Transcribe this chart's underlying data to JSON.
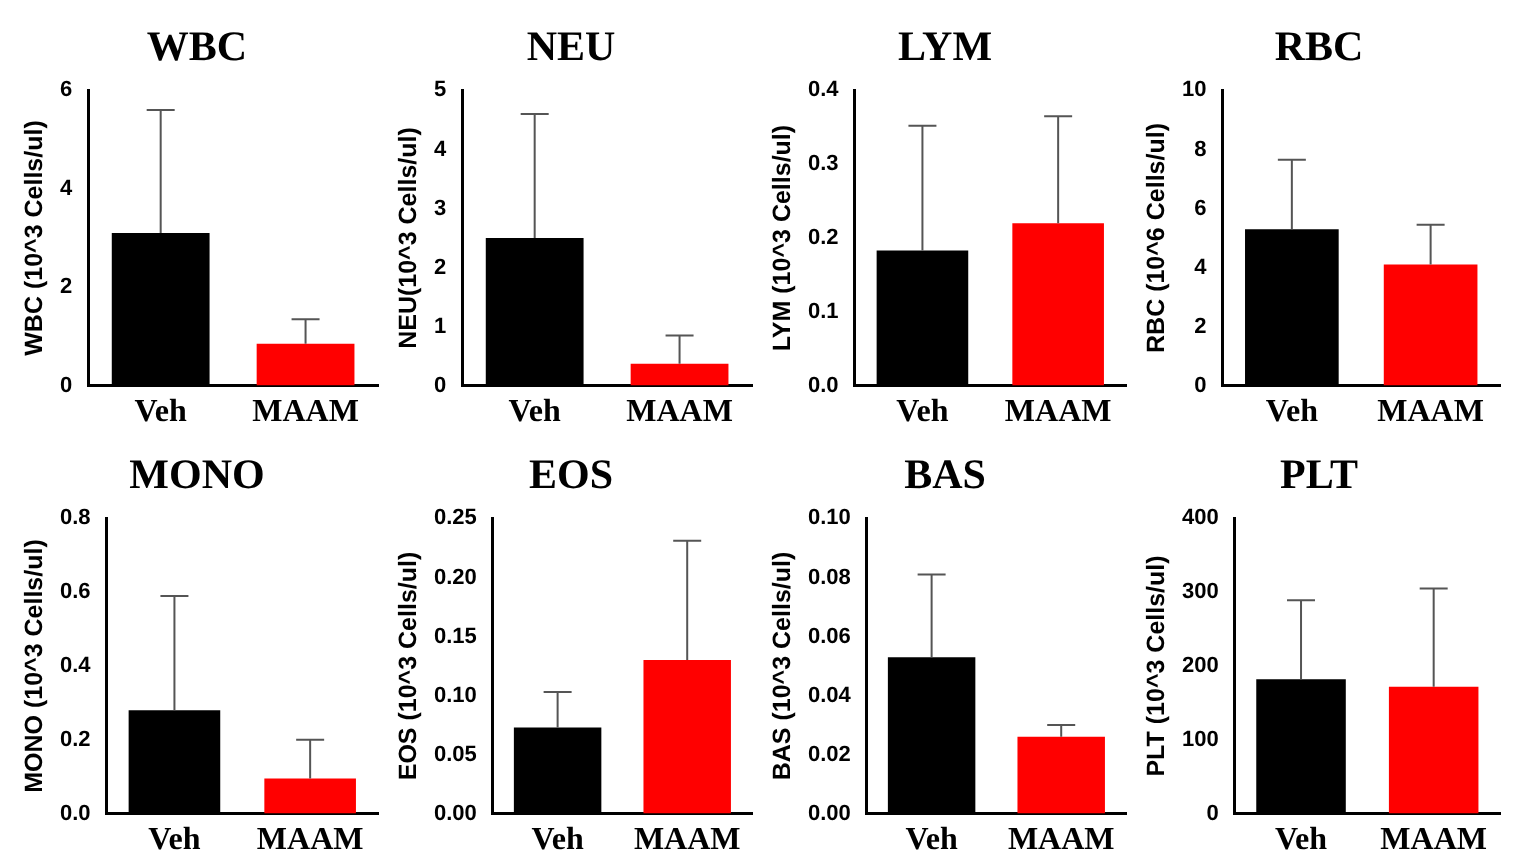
{
  "chart_data": [
    {
      "type": "bar",
      "title": "WBC",
      "ylabel": "WBC (10^3 Cells/ul)",
      "categories": [
        "Veh",
        "MAAM"
      ],
      "values": [
        3.1,
        0.85
      ],
      "errors": [
        [
          3.1,
          5.6
        ],
        [
          0.85,
          1.35
        ]
      ],
      "colors": [
        "#000000",
        "#ff0000"
      ],
      "ylim": [
        0,
        6
      ],
      "yticks": [
        0,
        2,
        4,
        6
      ],
      "grid": false
    },
    {
      "type": "bar",
      "title": "NEU",
      "ylabel": "NEU(10^3 Cells/ul)",
      "categories": [
        "Veh",
        "MAAM"
      ],
      "values": [
        2.5,
        0.37
      ],
      "errors": [
        [
          2.5,
          4.6
        ],
        [
          0.37,
          0.85
        ]
      ],
      "colors": [
        "#000000",
        "#ff0000"
      ],
      "ylim": [
        0,
        5
      ],
      "yticks": [
        0,
        1,
        2,
        3,
        4,
        5
      ],
      "grid": false
    },
    {
      "type": "bar",
      "title": "LYM",
      "ylabel": "LYM (10^3 Cells/ul)",
      "categories": [
        "Veh",
        "MAAM"
      ],
      "values": [
        0.183,
        0.22
      ],
      "errors": [
        [
          0.183,
          0.352
        ],
        [
          0.22,
          0.365
        ]
      ],
      "colors": [
        "#000000",
        "#ff0000"
      ],
      "ylim": [
        0,
        0.4
      ],
      "yticks": [
        {
          "value": 0,
          "label": "0.0"
        },
        0.1,
        0.2,
        0.3,
        0.4
      ],
      "grid": false
    },
    {
      "type": "bar",
      "title": "RBC",
      "ylabel": "RBC (10^6 Cells/ul)",
      "categories": [
        "Veh",
        "MAAM"
      ],
      "values": [
        5.3,
        4.1
      ],
      "errors": [
        [
          5.3,
          7.65
        ],
        [
          4.1,
          5.45
        ]
      ],
      "colors": [
        "#000000",
        "#ff0000"
      ],
      "ylim": [
        0,
        10
      ],
      "yticks": [
        0,
        2,
        4,
        6,
        8,
        10
      ],
      "grid": false
    },
    {
      "type": "bar",
      "title": "MONO",
      "ylabel": "MONO (10^3 Cells/ul)",
      "categories": [
        "Veh",
        "MAAM"
      ],
      "values": [
        0.28,
        0.095
      ],
      "errors": [
        [
          0.28,
          0.59
        ],
        [
          0.095,
          0.2
        ]
      ],
      "colors": [
        "#000000",
        "#ff0000"
      ],
      "ylim": [
        0,
        0.8
      ],
      "yticks": [
        {
          "value": 0,
          "label": "0.0"
        },
        0.2,
        0.4,
        0.6,
        0.8
      ],
      "grid": false
    },
    {
      "type": "bar",
      "title": "EOS",
      "ylabel": "EOS (10^3 Cells/ul)",
      "categories": [
        "Veh",
        "MAAM"
      ],
      "values": [
        0.073,
        0.13
      ],
      "errors": [
        [
          0.073,
          0.103
        ],
        [
          0.13,
          0.231
        ]
      ],
      "colors": [
        "#000000",
        "#ff0000"
      ],
      "ylim": [
        0,
        0.25
      ],
      "yticks": [
        {
          "value": 0,
          "label": "0.00"
        },
        0.05,
        {
          "value": 0.1,
          "label": "0.10"
        },
        0.15,
        {
          "value": 0.2,
          "label": "0.20"
        },
        0.25
      ],
      "grid": false
    },
    {
      "type": "bar",
      "title": "BAS",
      "ylabel": "BAS (10^3 Cells/ul)",
      "categories": [
        "Veh",
        "MAAM"
      ],
      "values": [
        0.053,
        0.026
      ],
      "errors": [
        [
          0.053,
          0.081
        ],
        [
          0.026,
          0.03
        ]
      ],
      "colors": [
        "#000000",
        "#ff0000"
      ],
      "ylim": [
        0,
        0.1
      ],
      "yticks": [
        {
          "value": 0,
          "label": "0.00"
        },
        0.02,
        0.04,
        0.06,
        0.08,
        {
          "value": 0.1,
          "label": "0.10"
        }
      ],
      "grid": false
    },
    {
      "type": "bar",
      "title": "PLT",
      "ylabel": "PLT (10^3 Cells/ul)",
      "categories": [
        "Veh",
        "MAAM"
      ],
      "values": [
        182,
        172
      ],
      "errors": [
        [
          182,
          289
        ],
        [
          172,
          305
        ]
      ],
      "colors": [
        "#000000",
        "#ff0000"
      ],
      "ylim": [
        0,
        400
      ],
      "yticks": [
        0,
        100,
        200,
        300,
        400
      ],
      "grid": false
    }
  ]
}
